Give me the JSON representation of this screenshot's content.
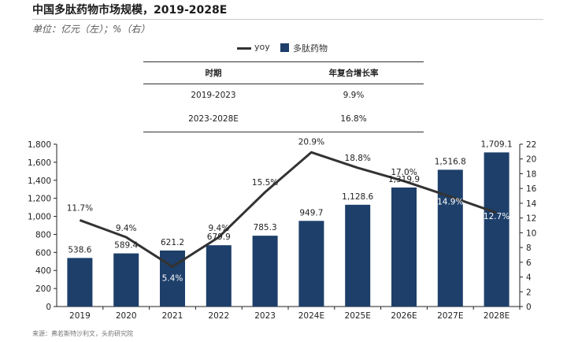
{
  "title": "中国多肽药物市场规模，2019-2028E",
  "unit": "单位：亿元（左）；%（右）",
  "legend": {
    "line": "yoy",
    "bar": "多肽药物"
  },
  "table": {
    "headers": [
      "时期",
      "年复合增长率"
    ],
    "rows": [
      [
        "2019-2023",
        "9.9%"
      ],
      [
        "2023-2028E",
        "16.8%"
      ]
    ]
  },
  "source": "来源：弗若斯特沙利文，头豹研究院",
  "colors": {
    "bar": "#1d3f6a",
    "line": "#333333"
  },
  "chart_data": {
    "type": "bar",
    "categories": [
      "2019",
      "2020",
      "2021",
      "2022",
      "2023",
      "2024E",
      "2025E",
      "2026E",
      "2027E",
      "2028E"
    ],
    "series": [
      {
        "name": "多肽药物",
        "type": "bar",
        "axis": "left",
        "values": [
          538.6,
          589.4,
          621.2,
          679.9,
          785.3,
          949.7,
          1128.6,
          1319.9,
          1516.8,
          1709.1
        ],
        "labels": [
          "538.6",
          "589.4",
          "621.2",
          "679.9",
          "785.3",
          "949.7",
          "1,128.6",
          "1,319.9",
          "1,516.8",
          "1,709.1"
        ]
      },
      {
        "name": "yoy",
        "type": "line",
        "axis": "right",
        "values": [
          11.7,
          9.4,
          5.4,
          9.4,
          15.5,
          20.9,
          18.8,
          17.0,
          14.9,
          12.7
        ],
        "labels": [
          "11.7%",
          "9.4%",
          "5.4%",
          "9.4%",
          "15.5%",
          "20.9%",
          "18.8%",
          "17.0%",
          "14.9%",
          "12.7%"
        ]
      }
    ],
    "ylim_left": [
      0,
      1800
    ],
    "yticks_left": [
      "0",
      "200",
      "400",
      "600",
      "800",
      "1,000",
      "1,200",
      "1,400",
      "1,600",
      "1,800"
    ],
    "ylim_right": [
      0,
      22
    ],
    "yticks_right": [
      "0",
      "2",
      "4",
      "6",
      "8",
      "10",
      "12",
      "14",
      "16",
      "18",
      "20",
      "22"
    ],
    "legend_position": "top-center",
    "grid": false
  }
}
